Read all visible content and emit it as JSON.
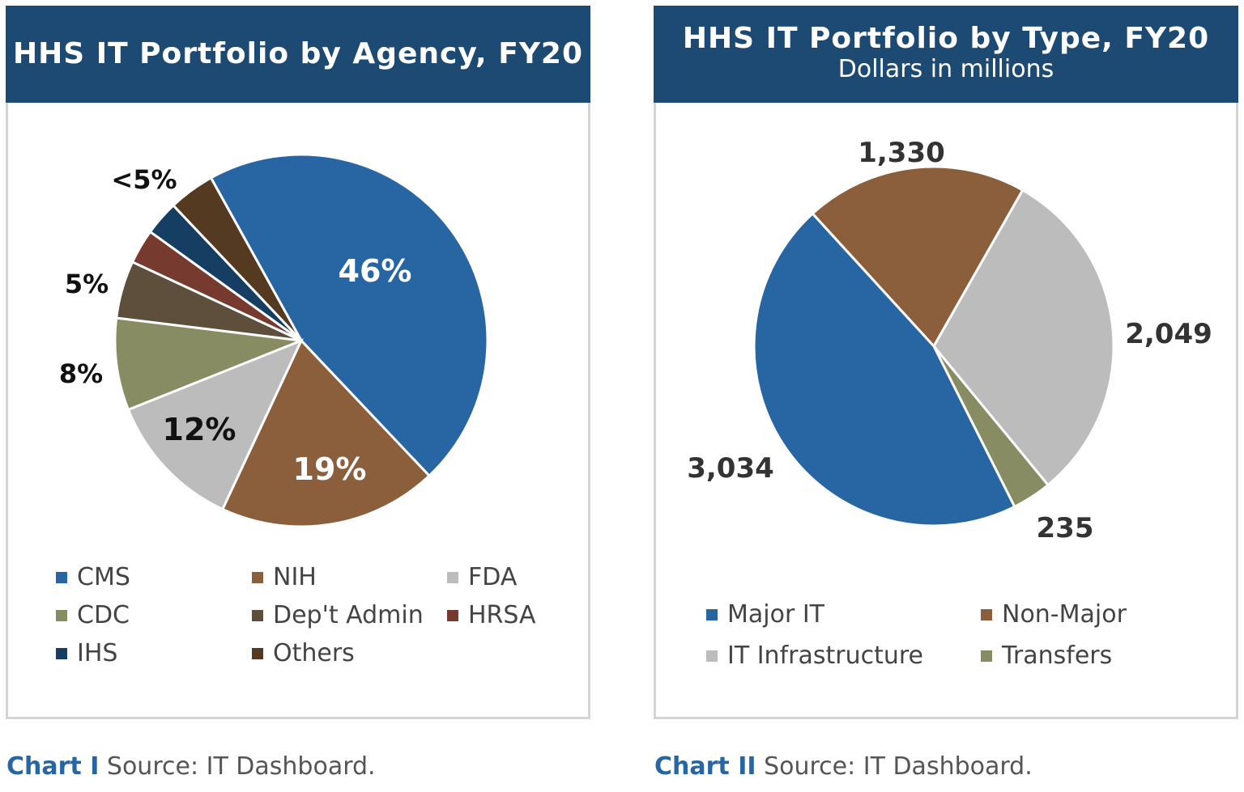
{
  "chart_data": [
    {
      "type": "pie",
      "title": "HHS IT Portfolio by Agency, FY20",
      "unit": "percent",
      "slices": [
        {
          "label": "CMS",
          "value": 46,
          "color": "#2766a3",
          "data_label": "46%"
        },
        {
          "label": "NIH",
          "value": 19,
          "color": "#8b5e3c",
          "data_label": "19%"
        },
        {
          "label": "FDA",
          "value": 12,
          "color": "#bcbcbc",
          "data_label": "12%"
        },
        {
          "label": "CDC",
          "value": 8,
          "color": "#878c63",
          "data_label": "8%"
        },
        {
          "label": "Dep't Admin",
          "value": 5,
          "color": "#5e4e3c",
          "data_label": "5%"
        },
        {
          "label": "HRSA",
          "value": 3,
          "color": "#763a2e",
          "data_label": ""
        },
        {
          "label": "IHS",
          "value": 3,
          "color": "#163e63",
          "data_label": ""
        },
        {
          "label": "Others",
          "value": 4,
          "color": "#553a22",
          "data_label": ""
        }
      ],
      "group_label": "<5%",
      "legend_position": "bottom"
    },
    {
      "type": "pie",
      "title": "HHS IT Portfolio by Type, FY20",
      "subtitle": "Dollars in millions",
      "slices": [
        {
          "label": "Non-Major",
          "value": 1330,
          "color": "#8b5e3c",
          "data_label": "1,330"
        },
        {
          "label": "IT Infrastructure",
          "value": 2049,
          "color": "#bcbcbc",
          "data_label": "2,049"
        },
        {
          "label": "Transfers",
          "value": 235,
          "color": "#878c63",
          "data_label": "235"
        },
        {
          "label": "Major IT",
          "value": 3034,
          "color": "#2766a3",
          "data_label": "3,034"
        }
      ],
      "legend_order": [
        "Major IT",
        "Non-Major",
        "IT Infrastructure",
        "Transfers"
      ],
      "legend_position": "bottom"
    }
  ],
  "captions": [
    {
      "label": "Chart I",
      "text": " Source: IT Dashboard."
    },
    {
      "label": "Chart II",
      "text": " Source: IT Dashboard."
    }
  ]
}
